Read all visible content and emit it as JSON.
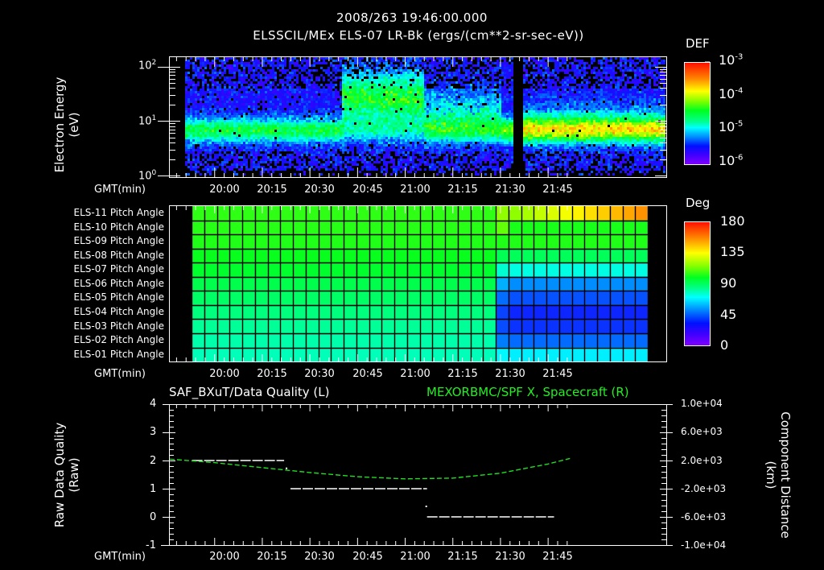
{
  "header": {
    "timestamp": "2008/263 19:46:00.000",
    "title": "ELSSCIL/MEx ELS-07 LR-Bk  (ergs/(cm**2-sr-sec-eV))"
  },
  "time_axis": {
    "label": "GMT(min)",
    "ticks": [
      "20:00",
      "20:15",
      "20:30",
      "20:45",
      "21:00",
      "21:15",
      "21:30",
      "21:45"
    ]
  },
  "panel1": {
    "ylabel_line1": "Electron Energy",
    "ylabel_line2": "(eV)",
    "yticks": [
      {
        "base": "10",
        "exp": "2"
      },
      {
        "base": "10",
        "exp": "1"
      },
      {
        "base": "10",
        "exp": "0"
      }
    ],
    "colorbar": {
      "title": "DEF",
      "ticks": [
        {
          "base": "10",
          "exp": "-3"
        },
        {
          "base": "10",
          "exp": "-4"
        },
        {
          "base": "10",
          "exp": "-5"
        },
        {
          "base": "10",
          "exp": "-6"
        }
      ]
    }
  },
  "panel2": {
    "rows": [
      "ELS-11 Pitch Angle",
      "ELS-10 Pitch Angle",
      "ELS-09 Pitch Angle",
      "ELS-08 Pitch Angle",
      "ELS-07 Pitch Angle",
      "ELS-06 Pitch Angle",
      "ELS-05 Pitch Angle",
      "ELS-04 Pitch Angle",
      "ELS-03 Pitch Angle",
      "ELS-02 Pitch Angle",
      "ELS-01 Pitch Angle"
    ],
    "colorbar": {
      "title": "Deg",
      "ticks": [
        "180",
        "135",
        "90",
        "45",
        "0"
      ]
    }
  },
  "panel3": {
    "left_title": "SAF_BXuT/Data Quality (L)",
    "right_title": "MEXORBMC/SPF X, Spacecraft (R)",
    "right_title_color": "#22ee22",
    "ylabel_left_line1": "Raw Data Quality",
    "ylabel_left_line2": "(Raw)",
    "ylabel_right_line1": "Component Distance",
    "ylabel_right_line2": "(km)",
    "yticks_left": [
      "4",
      "3",
      "2",
      "1",
      "0",
      "-1"
    ],
    "yticks_right": [
      "1.0e+04",
      "6.0e+03",
      "2.0e+03",
      "-2.0e+03",
      "-6.0e+03",
      "-1.0e+04"
    ]
  },
  "chart_data": [
    {
      "type": "heatmap",
      "title": "ELSSCIL/MEx ELS-07 LR-Bk (ergs/(cm**2-sr-sec-eV))",
      "xlabel": "GMT(min)",
      "ylabel": "Electron Energy (eV)",
      "x_range": [
        "19:46",
        "21:52"
      ],
      "y_range": [
        1,
        150
      ],
      "y_scale": "log",
      "colorbar": {
        "label": "DEF",
        "scale": "log",
        "range": [
          1e-06,
          0.001
        ]
      },
      "features": [
        {
          "time": "19:53-20:40",
          "energy_eV": "5-12",
          "level": "~1e-5 (cyan band)"
        },
        {
          "time": "20:40-21:05",
          "energy_eV": "10-100",
          "level": "~1e-4 (green enhancement)"
        },
        {
          "time": "21:05-21:30",
          "energy_eV": "5-60",
          "level": "~2e-5 (cyan, patchy)"
        },
        {
          "time": "21:34-21:36",
          "energy_eV": "all",
          "level": "data gap"
        },
        {
          "time": "21:40-21:52",
          "energy_eV": "5-20",
          "level": "~5e-5 (green-cyan)"
        }
      ]
    },
    {
      "type": "heatmap",
      "title": "ELS Pitch Angle",
      "xlabel": "GMT(min)",
      "categories": [
        "ELS-11",
        "ELS-10",
        "ELS-09",
        "ELS-08",
        "ELS-07",
        "ELS-06",
        "ELS-05",
        "ELS-04",
        "ELS-03",
        "ELS-02",
        "ELS-01"
      ],
      "x_range": [
        "19:46",
        "21:52"
      ],
      "colorbar": {
        "label": "Deg",
        "range": [
          0,
          180
        ]
      },
      "values_deg_typical": [
        105,
        104,
        103,
        100,
        97,
        92,
        88,
        84,
        80,
        77,
        75
      ],
      "notes": "Uniform from ~19:53 to ~21:33; anomaly 21:33-21:48 with ELS-07..ELS-02 dropping to ~45-60 deg and ELS-11 rising to ~120 deg"
    },
    {
      "type": "line",
      "title": "SAF_BXuT/Data Quality (L) & MEXORBMC/SPF X, Spacecraft (R)",
      "xlabel": "GMT(min)",
      "ylabel": "Raw Data Quality (Raw)",
      "ylabel_right": "Component Distance (km)",
      "ylim": [
        -1,
        4
      ],
      "ylim_right": [
        -10000,
        10000
      ],
      "series": [
        {
          "name": "Data Quality (L)",
          "color": "#ffffff",
          "x": [
            "19:53",
            "20:22",
            "20:23",
            "21:07",
            "21:08",
            "21:47"
          ],
          "values": [
            2,
            2,
            1,
            1,
            0,
            0
          ]
        },
        {
          "name": "SPF X, Spacecraft (R)",
          "color": "#22ee22",
          "x": [
            "19:46",
            "20:00",
            "20:15",
            "20:30",
            "20:45",
            "21:00",
            "21:15",
            "21:30",
            "21:45",
            "21:52"
          ],
          "values": [
            2200,
            1700,
            1000,
            300,
            -300,
            -600,
            -500,
            200,
            1500,
            2300
          ]
        }
      ]
    }
  ]
}
